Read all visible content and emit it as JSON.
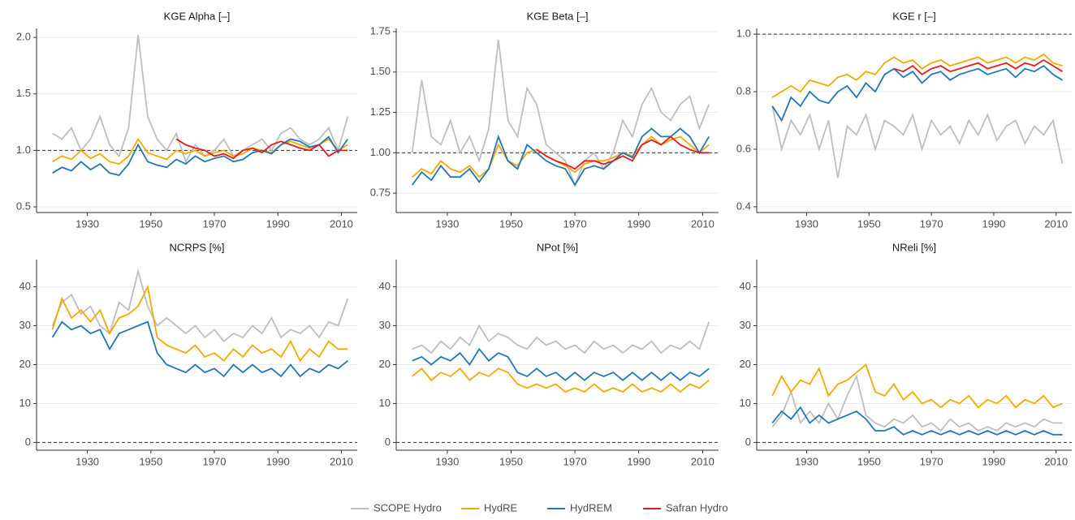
{
  "chart_data": [
    {
      "type": "line",
      "title": "KGE Alpha [–]",
      "x": [
        1919,
        1922,
        1925,
        1928,
        1931,
        1934,
        1937,
        1940,
        1943,
        1946,
        1949,
        1952,
        1955,
        1958,
        1961,
        1964,
        1967,
        1970,
        1973,
        1976,
        1979,
        1982,
        1985,
        1988,
        1991,
        1994,
        1997,
        2000,
        2003,
        2006,
        2009,
        2012
      ],
      "xlim": [
        1914,
        2015
      ],
      "xticks": [
        1930,
        1950,
        1970,
        1990,
        2010
      ],
      "ylim": [
        0.45,
        2.08
      ],
      "yticks": [
        0.5,
        {
          "value": 1,
          "label": "1.0"
        },
        1.5,
        {
          "value": 2,
          "label": "2.0"
        }
      ],
      "reference_line": 1,
      "grid": true,
      "series": [
        {
          "name": "SCOPE Hydro",
          "color": "#bebebe",
          "values": [
            1.15,
            1.1,
            1.2,
            1.0,
            1.1,
            1.3,
            1.05,
            0.95,
            1.2,
            2.02,
            1.3,
            1.1,
            1.0,
            1.15,
            0.9,
            1.05,
            0.95,
            1.0,
            1.1,
            0.95,
            1.0,
            1.05,
            1.1,
            1.0,
            1.15,
            1.2,
            1.1,
            1.05,
            1.1,
            1.2,
            1.0,
            1.3
          ]
        },
        {
          "name": "HydRE",
          "color": "#f5a800",
          "values": [
            0.9,
            0.95,
            0.92,
            1.0,
            0.93,
            0.97,
            0.9,
            0.88,
            0.95,
            1.1,
            0.98,
            0.95,
            0.92,
            1.0,
            0.97,
            1.0,
            0.95,
            0.98,
            1.0,
            0.95,
            0.97,
            1.02,
            1.0,
            0.98,
            1.05,
            1.08,
            1.05,
            1.02,
            1.05,
            1.1,
            1.0,
            1.05
          ]
        },
        {
          "name": "HydREM",
          "color": "#1f78b4",
          "values": [
            0.8,
            0.85,
            0.82,
            0.9,
            0.83,
            0.88,
            0.8,
            0.78,
            0.88,
            1.05,
            0.9,
            0.87,
            0.85,
            0.92,
            0.88,
            0.95,
            0.9,
            0.93,
            0.95,
            0.9,
            0.92,
            0.98,
            1.0,
            0.97,
            1.05,
            1.1,
            1.08,
            1.03,
            1.05,
            1.12,
            0.98,
            1.1
          ]
        },
        {
          "name": "Safran Hydro",
          "color": "#e41a1c",
          "values": [
            null,
            null,
            null,
            null,
            null,
            null,
            null,
            null,
            null,
            null,
            null,
            null,
            null,
            1.1,
            1.05,
            1.02,
            1.0,
            0.95,
            0.97,
            0.93,
            1.0,
            1.02,
            0.98,
            1.05,
            1.08,
            1.05,
            1.02,
            1.0,
            1.05,
            0.95,
            1.0,
            1.0
          ]
        }
      ]
    },
    {
      "type": "line",
      "title": "KGE Beta [–]",
      "x": [
        1919,
        1922,
        1925,
        1928,
        1931,
        1934,
        1937,
        1940,
        1943,
        1946,
        1949,
        1952,
        1955,
        1958,
        1961,
        1964,
        1967,
        1970,
        1973,
        1976,
        1979,
        1982,
        1985,
        1988,
        1991,
        1994,
        1997,
        2000,
        2003,
        2006,
        2009,
        2012
      ],
      "xlim": [
        1914,
        2015
      ],
      "xticks": [
        1930,
        1950,
        1970,
        1990,
        2010
      ],
      "ylim": [
        0.63,
        1.77
      ],
      "yticks": [
        0.75,
        {
          "value": 1,
          "label": "1.00"
        },
        1.25,
        {
          "value": 1.5,
          "label": "1.50"
        },
        1.75
      ],
      "reference_line": 1,
      "grid": true,
      "series": [
        {
          "name": "SCOPE Hydro",
          "color": "#bebebe",
          "values": [
            1.0,
            1.45,
            1.1,
            1.05,
            1.2,
            1.0,
            1.1,
            0.95,
            1.15,
            1.7,
            1.2,
            1.1,
            1.4,
            1.3,
            1.05,
            1.0,
            0.95,
            0.8,
            0.95,
            1.0,
            0.9,
            1.0,
            1.2,
            1.1,
            1.3,
            1.4,
            1.25,
            1.2,
            1.3,
            1.35,
            1.15,
            1.3
          ]
        },
        {
          "name": "HydRE",
          "color": "#f5a800",
          "values": [
            0.85,
            0.9,
            0.87,
            0.95,
            0.9,
            0.88,
            0.92,
            0.85,
            0.9,
            1.05,
            0.95,
            0.92,
            1.0,
            1.02,
            0.98,
            0.95,
            0.92,
            0.88,
            0.93,
            0.95,
            0.95,
            0.97,
            1.0,
            0.98,
            1.05,
            1.1,
            1.05,
            1.08,
            1.1,
            1.05,
            1.0,
            1.05
          ]
        },
        {
          "name": "HydREM",
          "color": "#1f78b4",
          "values": [
            0.8,
            0.88,
            0.83,
            0.92,
            0.85,
            0.85,
            0.9,
            0.82,
            0.9,
            1.1,
            0.95,
            0.9,
            1.05,
            1.0,
            0.95,
            0.92,
            0.9,
            0.8,
            0.9,
            0.92,
            0.9,
            0.95,
            1.0,
            0.97,
            1.1,
            1.15,
            1.1,
            1.1,
            1.15,
            1.1,
            1.0,
            1.1
          ]
        },
        {
          "name": "Safran Hydro",
          "color": "#e41a1c",
          "values": [
            null,
            null,
            null,
            null,
            null,
            null,
            null,
            null,
            null,
            null,
            null,
            null,
            null,
            1.02,
            0.98,
            0.95,
            0.93,
            0.9,
            0.95,
            0.95,
            0.93,
            0.95,
            0.98,
            0.95,
            1.05,
            1.08,
            1.05,
            1.1,
            1.05,
            1.02,
            1.0,
            1.0
          ]
        }
      ]
    },
    {
      "type": "line",
      "title": "KGE r [–]",
      "x": [
        1919,
        1922,
        1925,
        1928,
        1931,
        1934,
        1937,
        1940,
        1943,
        1946,
        1949,
        1952,
        1955,
        1958,
        1961,
        1964,
        1967,
        1970,
        1973,
        1976,
        1979,
        1982,
        1985,
        1988,
        1991,
        1994,
        1997,
        2000,
        2003,
        2006,
        2009,
        2012
      ],
      "xlim": [
        1914,
        2015
      ],
      "xticks": [
        1930,
        1950,
        1970,
        1990,
        2010
      ],
      "ylim": [
        0.38,
        1.02
      ],
      "yticks": [
        0.4,
        0.6,
        0.8,
        {
          "value": 1,
          "label": "1.0"
        }
      ],
      "reference_line": 1,
      "grid": true,
      "series": [
        {
          "name": "SCOPE Hydro",
          "color": "#bebebe",
          "values": [
            0.75,
            0.6,
            0.7,
            0.65,
            0.72,
            0.6,
            0.7,
            0.5,
            0.68,
            0.65,
            0.72,
            0.6,
            0.7,
            0.68,
            0.65,
            0.72,
            0.6,
            0.7,
            0.65,
            0.68,
            0.62,
            0.7,
            0.65,
            0.72,
            0.63,
            0.68,
            0.7,
            0.62,
            0.68,
            0.65,
            0.7,
            0.55
          ]
        },
        {
          "name": "HydRE",
          "color": "#f5a800",
          "values": [
            0.78,
            0.8,
            0.82,
            0.8,
            0.84,
            0.83,
            0.82,
            0.85,
            0.86,
            0.84,
            0.87,
            0.86,
            0.9,
            0.92,
            0.9,
            0.91,
            0.88,
            0.9,
            0.91,
            0.89,
            0.9,
            0.91,
            0.92,
            0.9,
            0.91,
            0.92,
            0.9,
            0.92,
            0.91,
            0.93,
            0.9,
            0.89
          ]
        },
        {
          "name": "HydREM",
          "color": "#1f78b4",
          "values": [
            0.75,
            0.7,
            0.78,
            0.75,
            0.8,
            0.77,
            0.76,
            0.8,
            0.82,
            0.78,
            0.83,
            0.8,
            0.86,
            0.88,
            0.85,
            0.87,
            0.83,
            0.86,
            0.87,
            0.84,
            0.86,
            0.87,
            0.88,
            0.86,
            0.87,
            0.88,
            0.85,
            0.88,
            0.87,
            0.89,
            0.86,
            0.84
          ]
        },
        {
          "name": "Safran Hydro",
          "color": "#e41a1c",
          "values": [
            null,
            null,
            null,
            null,
            null,
            null,
            null,
            null,
            null,
            null,
            null,
            null,
            null,
            0.88,
            0.87,
            0.89,
            0.86,
            0.88,
            0.89,
            0.87,
            0.88,
            0.89,
            0.9,
            0.88,
            0.89,
            0.9,
            0.88,
            0.9,
            0.89,
            0.91,
            0.89,
            0.87
          ]
        }
      ]
    },
    {
      "type": "line",
      "title": "NCRPS [%]",
      "x": [
        1919,
        1922,
        1925,
        1928,
        1931,
        1934,
        1937,
        1940,
        1943,
        1946,
        1949,
        1952,
        1955,
        1958,
        1961,
        1964,
        1967,
        1970,
        1973,
        1976,
        1979,
        1982,
        1985,
        1988,
        1991,
        1994,
        1997,
        2000,
        2003,
        2006,
        2009,
        2012
      ],
      "xlim": [
        1914,
        2015
      ],
      "xticks": [
        1930,
        1950,
        1970,
        1990,
        2010
      ],
      "ylim": [
        -2,
        47
      ],
      "yticks": [
        0,
        10,
        20,
        30,
        40
      ],
      "reference_line": 0,
      "grid": true,
      "series": [
        {
          "name": "SCOPE Hydro",
          "color": "#bebebe",
          "values": [
            30,
            36,
            38,
            33,
            35,
            30,
            28,
            36,
            34,
            44,
            35,
            30,
            32,
            30,
            28,
            30,
            27,
            29,
            26,
            28,
            27,
            30,
            28,
            32,
            27,
            29,
            28,
            30,
            27,
            31,
            30,
            37
          ]
        },
        {
          "name": "HydRE",
          "color": "#f5a800",
          "values": [
            29,
            37,
            32,
            34,
            31,
            34,
            28,
            32,
            33,
            35,
            40,
            27,
            25,
            24,
            23,
            25,
            22,
            23,
            21,
            24,
            22,
            25,
            23,
            24,
            22,
            26,
            21,
            24,
            22,
            26,
            24,
            24
          ]
        },
        {
          "name": "HydREM",
          "color": "#1f78b4",
          "values": [
            27,
            31,
            29,
            30,
            28,
            29,
            24,
            28,
            29,
            30,
            31,
            23,
            20,
            19,
            18,
            20,
            18,
            19,
            17,
            20,
            18,
            20,
            18,
            19,
            17,
            20,
            17,
            19,
            18,
            20,
            19,
            21
          ]
        }
      ]
    },
    {
      "type": "line",
      "title": "NPot [%]",
      "x": [
        1919,
        1922,
        1925,
        1928,
        1931,
        1934,
        1937,
        1940,
        1943,
        1946,
        1949,
        1952,
        1955,
        1958,
        1961,
        1964,
        1967,
        1970,
        1973,
        1976,
        1979,
        1982,
        1985,
        1988,
        1991,
        1994,
        1997,
        2000,
        2003,
        2006,
        2009,
        2012
      ],
      "xlim": [
        1914,
        2015
      ],
      "xticks": [
        1930,
        1950,
        1970,
        1990,
        2010
      ],
      "ylim": [
        -2,
        47
      ],
      "yticks": [
        0,
        10,
        20,
        30,
        40
      ],
      "reference_line": 0,
      "grid": true,
      "series": [
        {
          "name": "SCOPE Hydro",
          "color": "#bebebe",
          "values": [
            24,
            25,
            23,
            26,
            24,
            27,
            25,
            30,
            26,
            28,
            27,
            25,
            24,
            27,
            25,
            26,
            24,
            25,
            23,
            26,
            24,
            25,
            23,
            25,
            24,
            26,
            23,
            25,
            24,
            26,
            24,
            31
          ]
        },
        {
          "name": "HydRE",
          "color": "#f5a800",
          "values": [
            17,
            19,
            16,
            18,
            17,
            19,
            16,
            18,
            17,
            19,
            18,
            15,
            14,
            15,
            14,
            15,
            13,
            14,
            13,
            15,
            13,
            14,
            13,
            15,
            13,
            14,
            13,
            15,
            13,
            15,
            14,
            16
          ]
        },
        {
          "name": "HydREM",
          "color": "#1f78b4",
          "values": [
            21,
            22,
            20,
            22,
            21,
            23,
            20,
            24,
            21,
            23,
            22,
            18,
            17,
            19,
            17,
            18,
            16,
            18,
            16,
            18,
            17,
            18,
            16,
            18,
            16,
            18,
            16,
            18,
            16,
            18,
            17,
            19
          ]
        }
      ]
    },
    {
      "type": "line",
      "title": "NReli [%]",
      "x": [
        1919,
        1922,
        1925,
        1928,
        1931,
        1934,
        1937,
        1940,
        1943,
        1946,
        1949,
        1952,
        1955,
        1958,
        1961,
        1964,
        1967,
        1970,
        1973,
        1976,
        1979,
        1982,
        1985,
        1988,
        1991,
        1994,
        1997,
        2000,
        2003,
        2006,
        2009,
        2012
      ],
      "xlim": [
        1914,
        2015
      ],
      "xticks": [
        1930,
        1950,
        1970,
        1990,
        2010
      ],
      "ylim": [
        -2,
        47
      ],
      "yticks": [
        0,
        10,
        20,
        30,
        40
      ],
      "reference_line": 0,
      "grid": true,
      "series": [
        {
          "name": "SCOPE Hydro",
          "color": "#bebebe",
          "values": [
            4,
            7,
            13,
            5,
            8,
            5,
            10,
            6,
            12,
            17,
            7,
            5,
            4,
            6,
            5,
            7,
            4,
            5,
            3,
            6,
            4,
            5,
            3,
            4,
            3,
            5,
            4,
            5,
            4,
            6,
            5,
            5
          ]
        },
        {
          "name": "HydRE",
          "color": "#f5a800",
          "values": [
            12,
            17,
            13,
            16,
            15,
            19,
            12,
            15,
            16,
            18,
            20,
            13,
            12,
            15,
            11,
            13,
            10,
            11,
            9,
            11,
            10,
            12,
            9,
            11,
            10,
            12,
            9,
            11,
            10,
            12,
            9,
            10
          ]
        },
        {
          "name": "HydREM",
          "color": "#1f78b4",
          "values": [
            5,
            8,
            6,
            9,
            5,
            7,
            5,
            6,
            7,
            8,
            6,
            3,
            3,
            4,
            2,
            3,
            2,
            3,
            2,
            3,
            2,
            3,
            2,
            3,
            2,
            3,
            2,
            3,
            2,
            3,
            2,
            2
          ]
        }
      ]
    }
  ]
}
